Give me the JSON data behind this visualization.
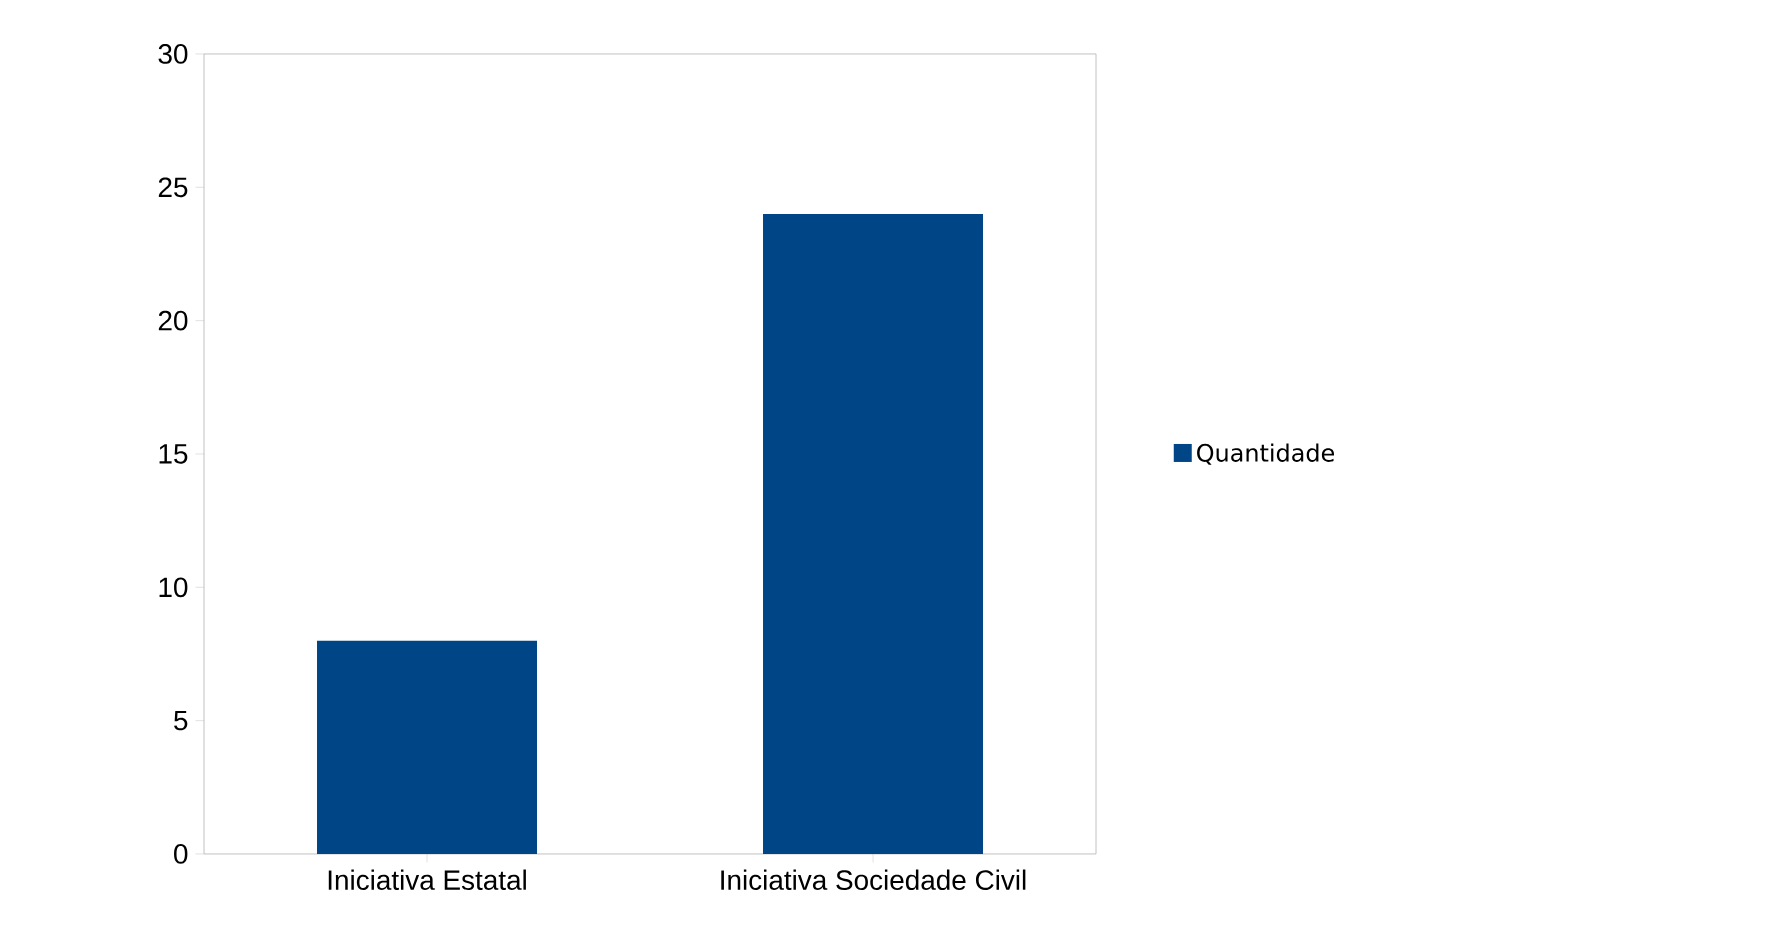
{
  "chart_data": {
    "type": "bar",
    "categories": [
      "Iniciativa Estatal",
      "Iniciativa Sociedade Civil"
    ],
    "series": [
      {
        "name": "Quantidade",
        "color": "#004586",
        "values": [
          8,
          24
        ]
      }
    ],
    "ylim": [
      0,
      30
    ],
    "yticks": [
      0,
      5,
      10,
      15,
      20,
      25,
      30
    ],
    "legend": "right",
    "grid": false
  }
}
